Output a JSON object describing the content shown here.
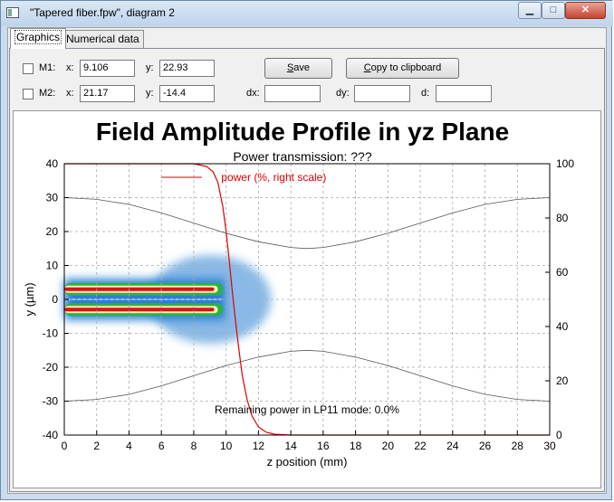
{
  "window": {
    "title": "\"Tapered fiber.fpw\", diagram 2",
    "minimize_glyph": "▁",
    "maximize_glyph": "□",
    "close_glyph": "✕"
  },
  "tabs": [
    {
      "label": "Graphics",
      "active": true
    },
    {
      "label": "Numerical data",
      "active": false
    }
  ],
  "markers": {
    "m1": {
      "label": "M1:",
      "x_label": "x:",
      "x_value": "9.106",
      "y_label": "y:",
      "y_value": "22.93"
    },
    "m2": {
      "label": "M2:",
      "x_label": "x:",
      "x_value": "21.17",
      "y_label": "y:",
      "y_value": "-14.4"
    },
    "dx_label": "dx:",
    "dx_value": "",
    "dy_label": "dy:",
    "dy_value": "",
    "d_label": "d:",
    "d_value": ""
  },
  "buttons": {
    "save_pre": "",
    "save_u": "S",
    "save_post": "ave",
    "copy_pre": "",
    "copy_u": "C",
    "copy_post": "opy to clipboard"
  },
  "chart_data": {
    "type": "heatmap",
    "title": "Field Amplitude Profile in yz Plane",
    "subtitle": "Power transmission: ???",
    "xlabel": "z position (mm)",
    "ylabel": "y (µm)",
    "xlim": [
      0,
      30
    ],
    "ylim": [
      -40,
      40
    ],
    "y2lim": [
      0,
      100
    ],
    "x_ticks": [
      "0",
      "2",
      "4",
      "6",
      "8",
      "10",
      "12",
      "14",
      "16",
      "18",
      "20",
      "22",
      "24",
      "26",
      "28",
      "30"
    ],
    "y_ticks": [
      "40",
      "30",
      "20",
      "10",
      "0",
      "-10",
      "-20",
      "-30",
      "-40"
    ],
    "y2_ticks": [
      "100",
      "80",
      "60",
      "40",
      "20",
      "0"
    ],
    "grid": true,
    "legend": {
      "entry": "power (%, right scale)",
      "placement": "top-left",
      "color": "#e00000"
    },
    "annotation": "Remaining power in LP11 mode: 0.0%",
    "series": [
      {
        "name": "power (%, right scale)",
        "color": "#e00000",
        "axis": "right",
        "x": [
          0,
          8.0,
          8.8,
          9.2,
          9.5,
          9.8,
          10.0,
          10.2,
          10.4,
          10.6,
          10.8,
          11.0,
          11.3,
          11.6,
          12.0,
          12.5,
          13.0,
          14.0,
          30
        ],
        "values": [
          100,
          100,
          99,
          97,
          93,
          84,
          75,
          64,
          52,
          41,
          31,
          22,
          13,
          7,
          3,
          1,
          0.3,
          0,
          0
        ]
      },
      {
        "name": "",
        "color": "#555555",
        "axis": "left",
        "x": [
          0,
          2,
          4,
          6,
          8,
          10,
          12,
          14,
          15,
          16,
          18,
          20,
          22,
          24,
          26,
          28,
          30
        ],
        "values": [
          30,
          29.5,
          28,
          25.5,
          22.5,
          19.5,
          17,
          15.3,
          15,
          15.3,
          17,
          19.5,
          22.5,
          25.5,
          28,
          29.5,
          30
        ]
      },
      {
        "name": "",
        "color": "#555555",
        "axis": "left",
        "x": [
          0,
          2,
          4,
          6,
          8,
          10,
          12,
          14,
          15,
          16,
          18,
          20,
          22,
          24,
          26,
          28,
          30
        ],
        "values": [
          -30,
          -29.5,
          -28,
          -25.5,
          -22.5,
          -19.5,
          -17,
          -15.3,
          -15,
          -15.3,
          -17,
          -19.5,
          -22.5,
          -25.5,
          -28,
          -29.5,
          -30
        ]
      }
    ],
    "heatmap": {
      "z_range": [
        0,
        10.5
      ],
      "lobe_centers_y": [
        3,
        -3
      ],
      "colors": [
        "#2a7fd4",
        "#2bb04a",
        "#f2f2b0",
        "#d01818"
      ]
    }
  }
}
